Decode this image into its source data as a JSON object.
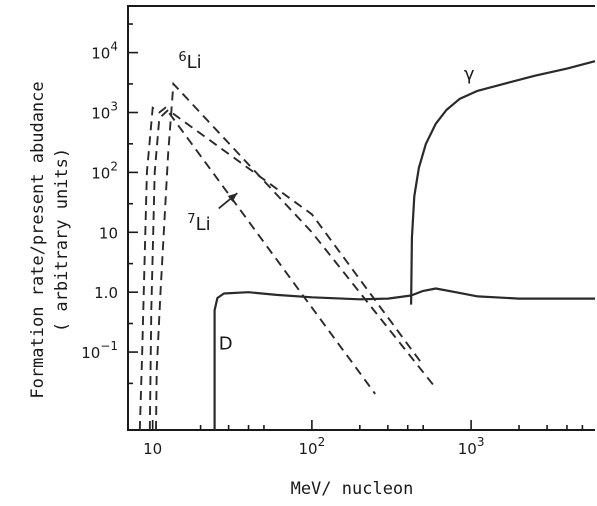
{
  "chart_data": {
    "type": "line",
    "x_scale": "log",
    "y_scale": "log",
    "xlim": [
      7,
      6000
    ],
    "ylim": [
      0.005,
      60000
    ],
    "xlabel": "MeV/ nucleon",
    "ylabel": "Formation rate/present abudance",
    "ylabel_sub": "( arbitrary units)",
    "x_ticks": [
      {
        "value": 10,
        "label": "10"
      },
      {
        "value": 100,
        "label": "10",
        "exp": "2"
      },
      {
        "value": 1000,
        "label": "10",
        "exp": "3"
      }
    ],
    "y_ticks": [
      {
        "value": 0.1,
        "label": "10",
        "exp": "−1"
      },
      {
        "value": 1,
        "label": "1.0"
      },
      {
        "value": 10,
        "label": "10"
      },
      {
        "value": 100,
        "label": "10",
        "exp": "2"
      },
      {
        "value": 1000,
        "label": "10",
        "exp": "3"
      },
      {
        "value": 10000,
        "label": "10",
        "exp": "4"
      }
    ],
    "grid": false,
    "series": [
      {
        "name": "γ",
        "style": "solid",
        "points": [
          [
            420,
            0.62
          ],
          [
            425,
            8
          ],
          [
            440,
            40
          ],
          [
            470,
            120
          ],
          [
            520,
            300
          ],
          [
            600,
            650
          ],
          [
            700,
            1100
          ],
          [
            850,
            1700
          ],
          [
            1100,
            2300
          ],
          [
            1600,
            3000
          ],
          [
            2500,
            4100
          ],
          [
            4000,
            5400
          ],
          [
            6000,
            7200
          ]
        ]
      },
      {
        "name": "D",
        "style": "solid",
        "points": [
          [
            24.5,
            0.005
          ],
          [
            24.5,
            0.5
          ],
          [
            25.5,
            0.8
          ],
          [
            28,
            0.95
          ],
          [
            40,
            1.0
          ],
          [
            60,
            0.9
          ],
          [
            100,
            0.82
          ],
          [
            200,
            0.76
          ],
          [
            300,
            0.78
          ],
          [
            420,
            0.88
          ],
          [
            500,
            1.05
          ],
          [
            600,
            1.15
          ],
          [
            800,
            1.0
          ],
          [
            1100,
            0.85
          ],
          [
            2000,
            0.78
          ],
          [
            6000,
            0.78
          ]
        ]
      },
      {
        "name": "6Li",
        "label": "Li",
        "label_sup": "6",
        "style": "dashed",
        "points": [
          [
            10.5,
            0.005
          ],
          [
            10.6,
            0.05
          ],
          [
            11.2,
            1
          ],
          [
            12.5,
            200
          ],
          [
            13.5,
            3000
          ],
          [
            100,
            10
          ],
          [
            600,
            0.025
          ]
        ]
      },
      {
        "name": "7Li",
        "label": "Li",
        "label_sup": "7",
        "style": "dashed",
        "points": [
          [
            8.3,
            0.005
          ],
          [
            8.6,
            0.1
          ],
          [
            9.2,
            100
          ],
          [
            10,
            1200
          ],
          [
            11,
            1000
          ],
          [
            12,
            1200
          ],
          [
            250,
            0.02
          ]
        ]
      },
      {
        "name": "7Li-b",
        "style": "dashed",
        "points": [
          [
            9.6,
            0.005
          ],
          [
            9.8,
            0.5
          ],
          [
            10.3,
            100
          ],
          [
            11,
            800
          ],
          [
            12.5,
            1100
          ],
          [
            100,
            20
          ],
          [
            500,
            0.06
          ]
        ]
      }
    ]
  }
}
